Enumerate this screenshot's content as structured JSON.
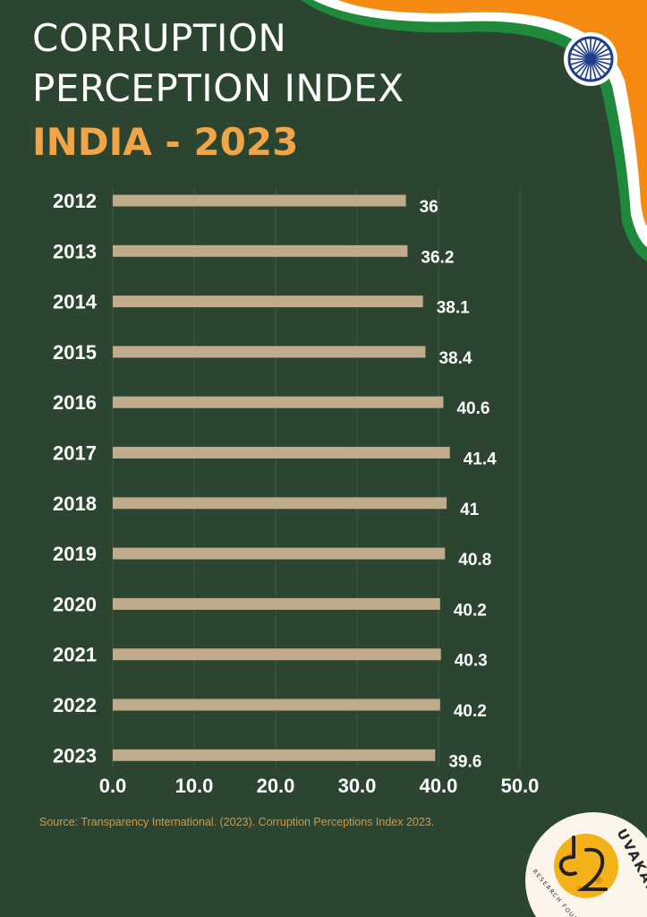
{
  "header": {
    "title_line1": "CORRUPTION",
    "title_line2": "PERCEPTION INDEX",
    "subtitle": "INDIA - 2023"
  },
  "colors": {
    "background": "#2b4530",
    "bar": "#c0ab8c",
    "title": "#ffffff",
    "subtitle": "#efa548",
    "saffron": "#f58a12",
    "flag_green": "#1f8a3c",
    "chakra": "#1f3d8a",
    "source": "#d49a45"
  },
  "chart_data": {
    "type": "bar",
    "orientation": "horizontal",
    "title": "",
    "xlabel": "",
    "ylabel": "",
    "categories": [
      "2012",
      "2013",
      "2014",
      "2015",
      "2016",
      "2017",
      "2018",
      "2019",
      "2020",
      "2021",
      "2022",
      "2023"
    ],
    "values": [
      36,
      36.2,
      38.1,
      38.4,
      40.6,
      41.4,
      41,
      40.8,
      40.2,
      40.3,
      40.2,
      39.6
    ],
    "value_labels": [
      "36",
      "36.2",
      "38.1",
      "38.4",
      "40.6",
      "41.4",
      "41",
      "40.8",
      "40.2",
      "40.3",
      "40.2",
      "39.6"
    ],
    "x_ticks": [
      "0.0",
      "10.0",
      "20.0",
      "30.0",
      "40.0",
      "50.0"
    ],
    "xlim": [
      0,
      50
    ],
    "grid": "vertical"
  },
  "footer": {
    "source": "Source: Transparency International. (2023). Corruption Perceptions Index 2023."
  },
  "logo": {
    "text": "UVAKAI",
    "subtext": "RESEARCH FOUNDATION"
  }
}
